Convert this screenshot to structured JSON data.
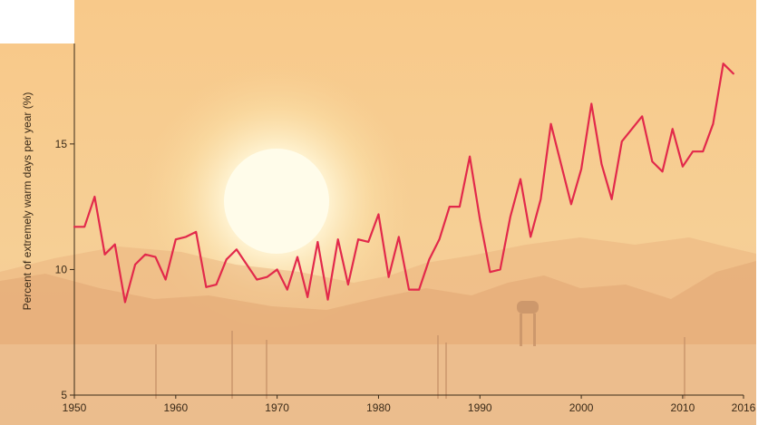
{
  "chart_data": {
    "type": "line",
    "title": "",
    "xlabel": "",
    "ylabel": "Percent of extremely warm days per year (%)",
    "xlim": [
      1950,
      2016
    ],
    "ylim": [
      5,
      19
    ],
    "x_ticks": [
      1950,
      1960,
      1970,
      1980,
      1990,
      2000,
      2010,
      2016
    ],
    "y_ticks": [
      5,
      10,
      15
    ],
    "grid": false,
    "legend": "none",
    "series": [
      {
        "color": "#e2294b",
        "x": [
          1950,
          1951,
          1952,
          1953,
          1954,
          1955,
          1956,
          1957,
          1958,
          1959,
          1960,
          1961,
          1962,
          1963,
          1964,
          1965,
          1966,
          1967,
          1968,
          1969,
          1970,
          1971,
          1972,
          1973,
          1974,
          1975,
          1976,
          1977,
          1978,
          1979,
          1980,
          1981,
          1982,
          1983,
          1984,
          1985,
          1986,
          1987,
          1988,
          1989,
          1990,
          1991,
          1992,
          1993,
          1994,
          1995,
          1996,
          1997,
          1998,
          1999,
          2000,
          2001,
          2002,
          2003,
          2004,
          2005,
          2006,
          2007,
          2008,
          2009,
          2010,
          2011,
          2012,
          2013,
          2014,
          2015,
          2016
        ],
        "values": [
          11.7,
          11.7,
          12.9,
          10.6,
          11.0,
          8.7,
          10.2,
          10.6,
          10.5,
          9.6,
          11.2,
          11.3,
          11.5,
          9.3,
          9.4,
          10.4,
          10.8,
          10.2,
          9.6,
          9.7,
          10.0,
          9.2,
          10.5,
          8.9,
          11.1,
          8.8,
          11.2,
          9.4,
          11.2,
          11.1,
          12.2,
          9.7,
          11.3,
          9.2,
          9.2,
          10.4,
          11.2,
          12.5,
          12.5,
          14.5,
          12.0,
          9.9,
          10.0,
          12.1,
          13.6,
          11.3,
          12.8,
          15.8,
          14.2,
          12.6,
          14.0,
          16.6,
          14.2,
          12.8,
          15.1,
          15.6,
          16.1,
          14.3,
          13.9,
          15.6,
          14.1,
          14.7,
          14.7,
          15.8,
          18.2,
          17.8,
          null
        ]
      }
    ],
    "colors": {
      "sky_top": "#f7c98a",
      "sky_bottom": "#f3cf9c",
      "sun": "#fffbe8",
      "mountains": "#e6b07a",
      "ground": "#ecc49a",
      "text": "#3a2a18"
    }
  }
}
